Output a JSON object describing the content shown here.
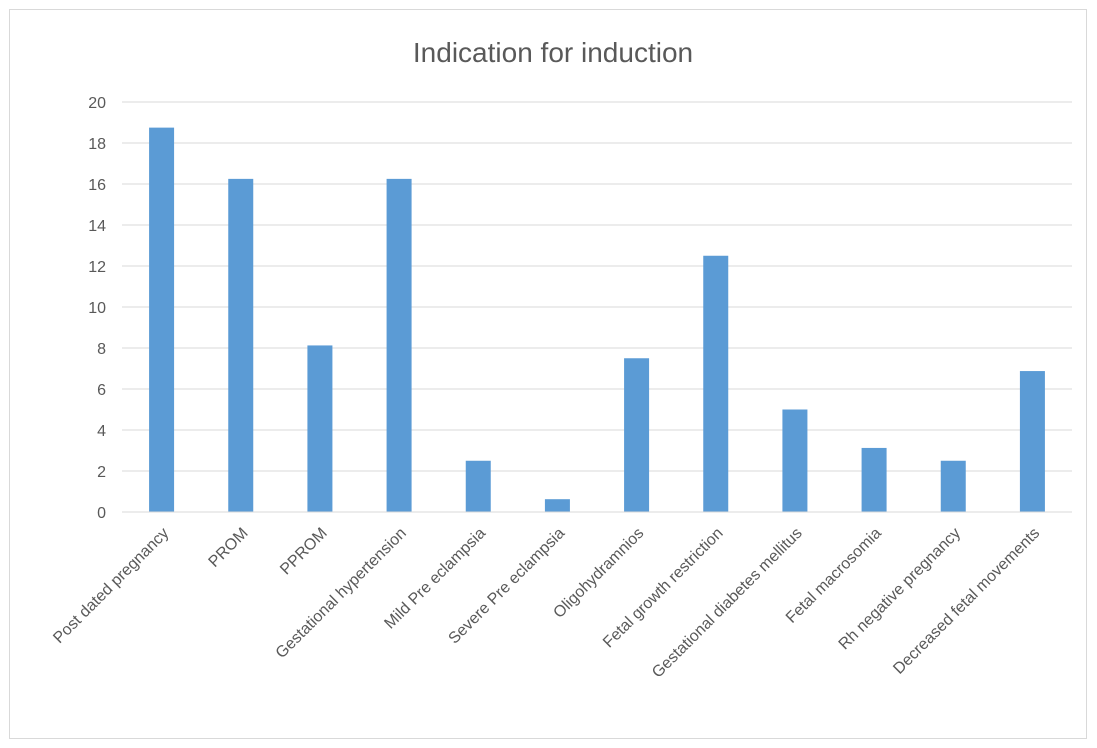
{
  "chart_data": {
    "type": "bar",
    "title": "Indication for induction",
    "xlabel": "",
    "ylabel": "",
    "categories": [
      "Post dated pregnancy",
      "PROM",
      "PPROM",
      "Gestational hypertension",
      "Mild Pre eclampsia",
      "Severe Pre eclampsia",
      "Oligohydramnios",
      "Fetal growth restriction",
      "Gestational diabetes mellitus",
      "Fetal macrosomia",
      "Rh negative pregnancy",
      "Decreased fetal movements"
    ],
    "values": [
      18.75,
      16.25,
      8.125,
      16.25,
      2.5,
      0.625,
      7.5,
      12.5,
      5.0,
      3.125,
      2.5,
      6.875
    ],
    "ylim": [
      0,
      20
    ],
    "yticks": [
      0,
      2,
      4,
      6,
      8,
      10,
      12,
      14,
      16,
      18,
      20
    ],
    "grid": true,
    "legend": "none",
    "bar_color": "#5b9bd5",
    "grid_color": "#d9d9d9",
    "text_color": "#595959"
  }
}
